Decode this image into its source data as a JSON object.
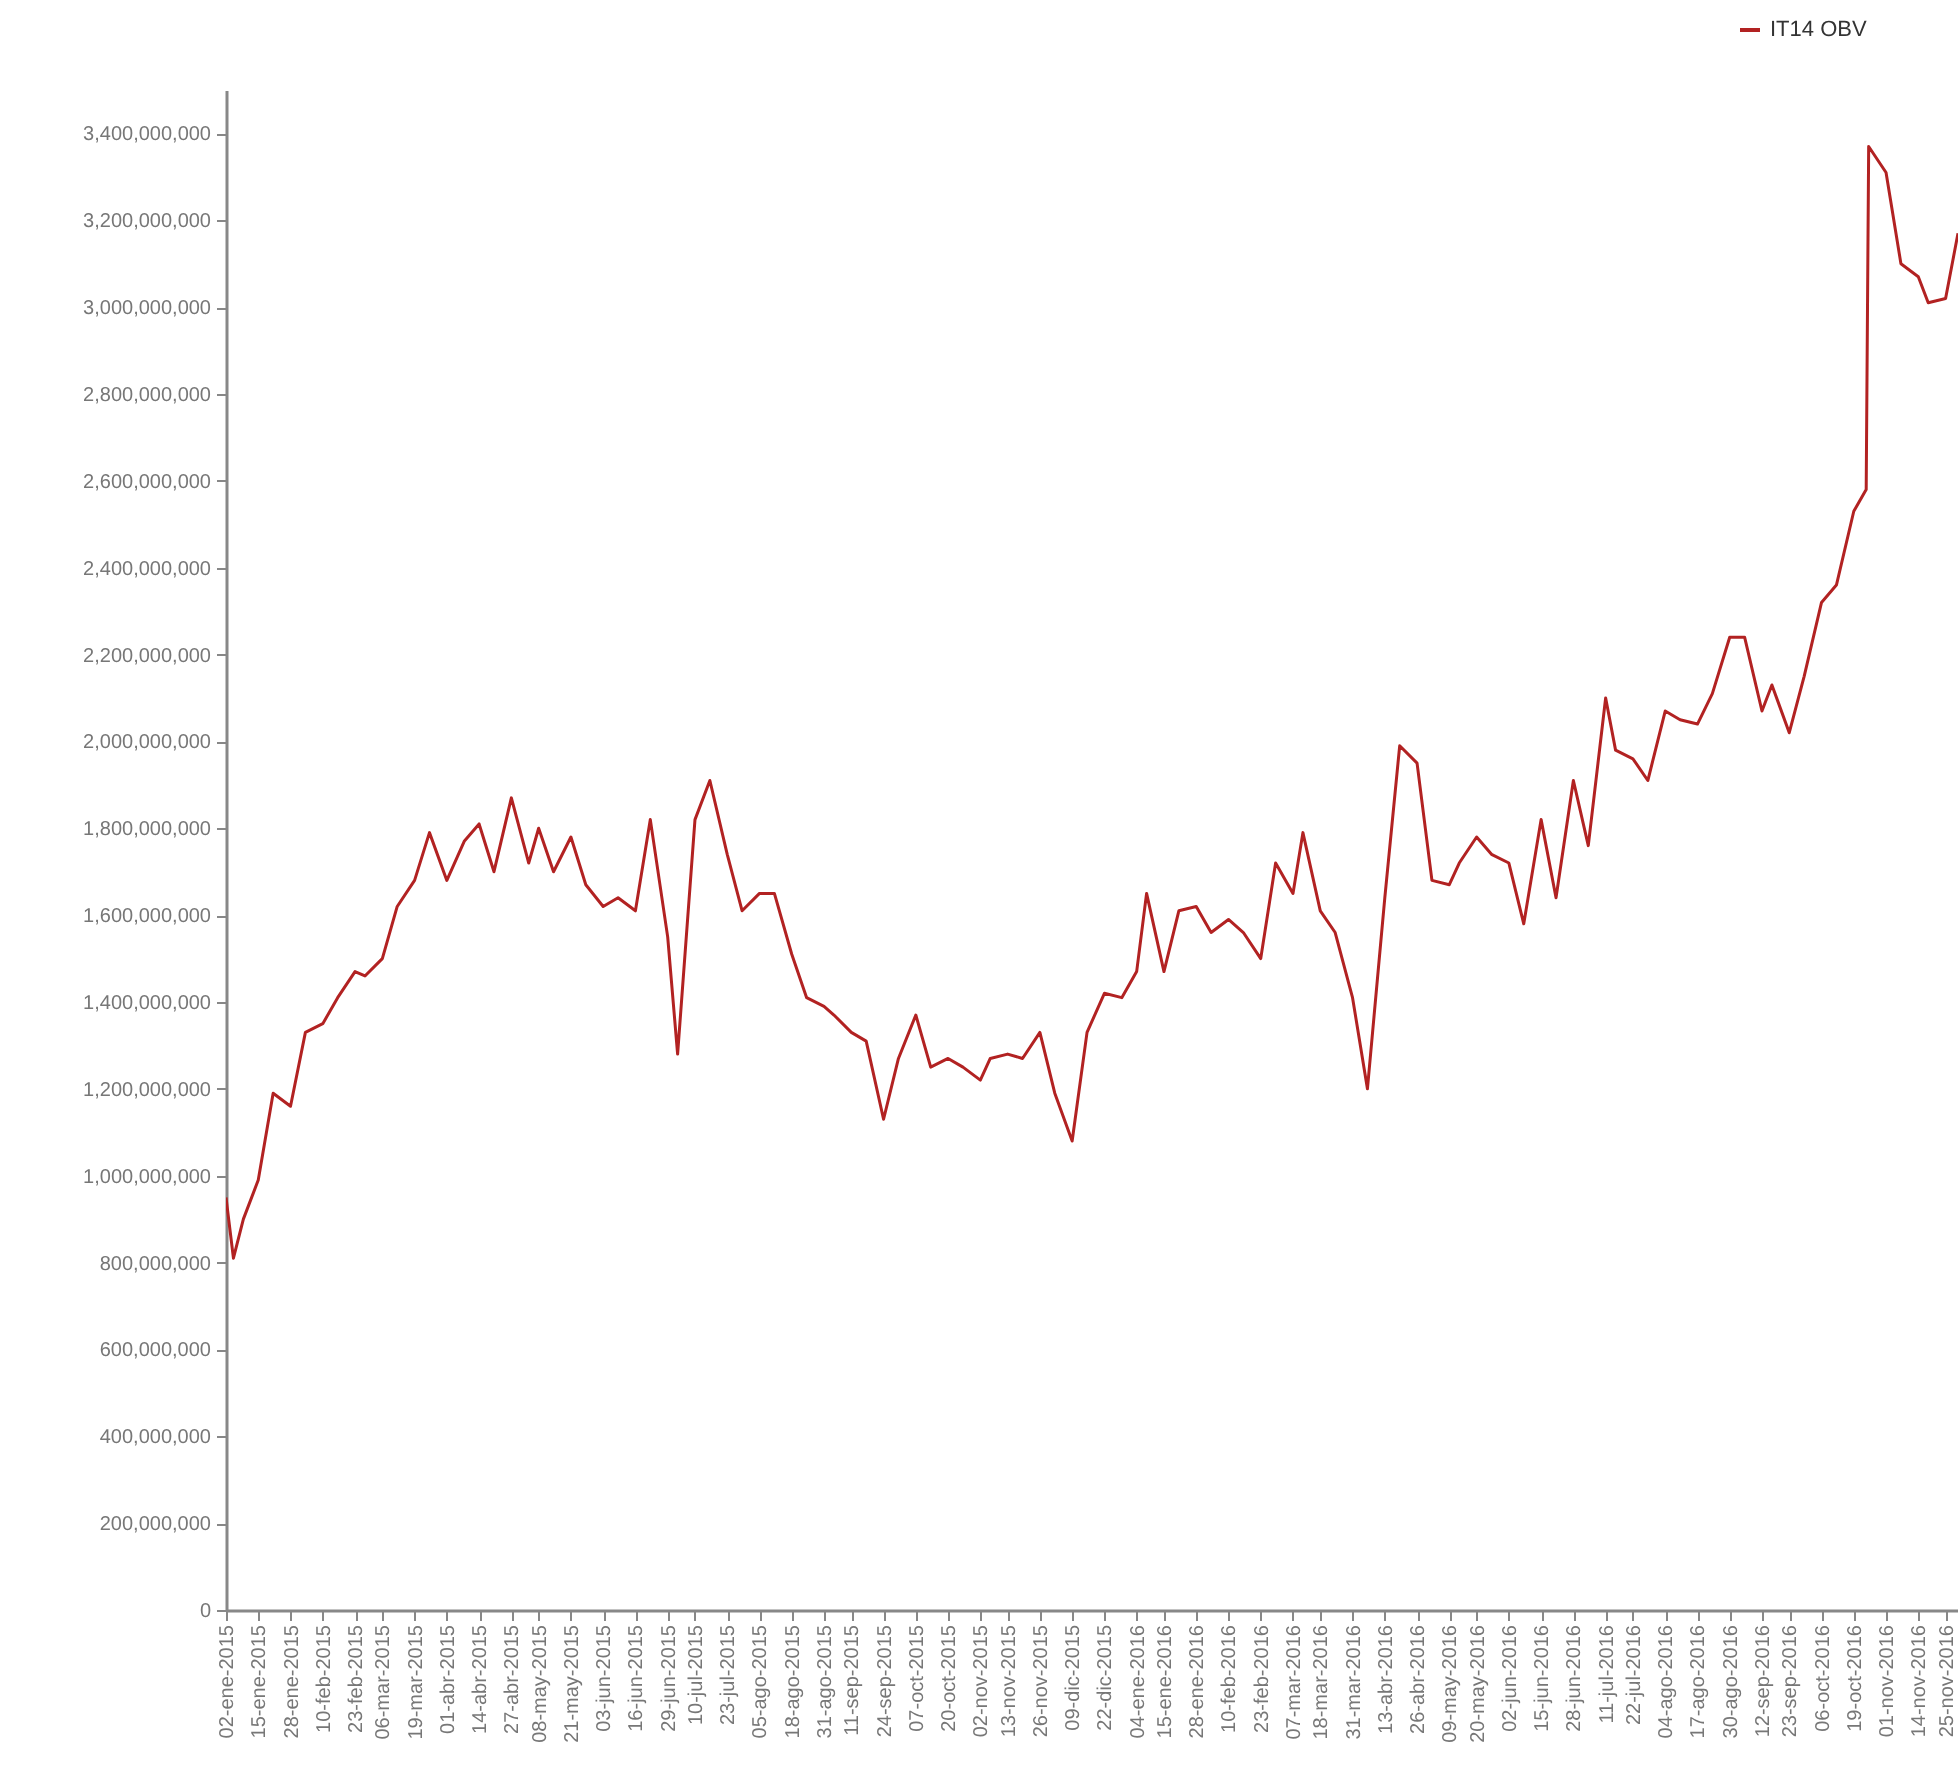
{
  "chart_data": {
    "type": "line",
    "legend": "top right",
    "marker": "none",
    "line_style": "solid",
    "xlim": [
      "2015-01-02",
      "2016-11-30"
    ],
    "ylim": [
      0,
      3500000000
    ],
    "yticks": [
      0,
      {
        "value": 200000000,
        "label": "200,000,000"
      },
      {
        "value": 400000000,
        "label": "400,000,000"
      },
      {
        "value": 600000000,
        "label": "600,000,000"
      },
      {
        "value": 800000000,
        "label": "800,000,000"
      },
      {
        "value": 1000000000,
        "label": "1,000,000,000"
      },
      {
        "value": 1200000000,
        "label": "1,200,000,000"
      },
      {
        "value": 1400000000,
        "label": "1,400,000,000"
      },
      {
        "value": 1600000000,
        "label": "1,600,000,000"
      },
      {
        "value": 1800000000,
        "label": "1,800,000,000"
      },
      {
        "value": 2000000000,
        "label": "2,000,000,000"
      },
      {
        "value": 2200000000,
        "label": "2,200,000,000"
      },
      {
        "value": 2400000000,
        "label": "2,400,000,000"
      },
      {
        "value": 2600000000,
        "label": "2,600,000,000"
      },
      {
        "value": 2800000000,
        "label": "2,800,000,000"
      },
      {
        "value": 3000000000,
        "label": "3,000,000,000"
      },
      {
        "value": 3200000000,
        "label": "3,200,000,000"
      },
      {
        "value": 3400000000,
        "label": "3,400,000,000"
      }
    ],
    "xticks": [
      {
        "value": "2015-01-02",
        "label": "02-ene-2015"
      },
      {
        "value": "2015-01-15",
        "label": "15-ene-2015"
      },
      {
        "value": "2015-01-28",
        "label": "28-ene-2015"
      },
      {
        "value": "2015-02-10",
        "label": "10-feb-2015"
      },
      {
        "value": "2015-02-23",
        "label": "23-feb-2015"
      },
      {
        "value": "2015-03-06",
        "label": "06-mar-2015"
      },
      {
        "value": "2015-03-19",
        "label": "19-mar-2015"
      },
      {
        "value": "2015-04-01",
        "label": "01-abr-2015"
      },
      {
        "value": "2015-04-14",
        "label": "14-abr-2015"
      },
      {
        "value": "2015-04-27",
        "label": "27-abr-2015"
      },
      {
        "value": "2015-05-08",
        "label": "08-may-2015"
      },
      {
        "value": "2015-05-21",
        "label": "21-may-2015"
      },
      {
        "value": "2015-06-03",
        "label": "03-jun-2015"
      },
      {
        "value": "2015-06-16",
        "label": "16-jun-2015"
      },
      {
        "value": "2015-06-29",
        "label": "29-jun-2015"
      },
      {
        "value": "2015-07-10",
        "label": "10-jul-2015"
      },
      {
        "value": "2015-07-23",
        "label": "23-jul-2015"
      },
      {
        "value": "2015-08-05",
        "label": "05-ago-2015"
      },
      {
        "value": "2015-08-18",
        "label": "18-ago-2015"
      },
      {
        "value": "2015-08-31",
        "label": "31-ago-2015"
      },
      {
        "value": "2015-09-11",
        "label": "11-sep-2015"
      },
      {
        "value": "2015-09-24",
        "label": "24-sep-2015"
      },
      {
        "value": "2015-10-07",
        "label": "07-oct-2015"
      },
      {
        "value": "2015-10-20",
        "label": "20-oct-2015"
      },
      {
        "value": "2015-11-02",
        "label": "02-nov-2015"
      },
      {
        "value": "2015-11-13",
        "label": "13-nov-2015"
      },
      {
        "value": "2015-11-26",
        "label": "26-nov-2015"
      },
      {
        "value": "2015-12-09",
        "label": "09-dic-2015"
      },
      {
        "value": "2015-12-22",
        "label": "22-dic-2015"
      },
      {
        "value": "2016-01-04",
        "label": "04-ene-2016"
      },
      {
        "value": "2016-01-15",
        "label": "15-ene-2016"
      },
      {
        "value": "2016-01-28",
        "label": "28-ene-2016"
      },
      {
        "value": "2016-02-10",
        "label": "10-feb-2016"
      },
      {
        "value": "2016-02-23",
        "label": "23-feb-2016"
      },
      {
        "value": "2016-03-07",
        "label": "07-mar-2016"
      },
      {
        "value": "2016-03-18",
        "label": "18-mar-2016"
      },
      {
        "value": "2016-03-31",
        "label": "31-mar-2016"
      },
      {
        "value": "2016-04-13",
        "label": "13-abr-2016"
      },
      {
        "value": "2016-04-26",
        "label": "26-abr-2016"
      },
      {
        "value": "2016-05-09",
        "label": "09-may-2016"
      },
      {
        "value": "2016-05-20",
        "label": "20-may-2016"
      },
      {
        "value": "2016-06-02",
        "label": "02-jun-2016"
      },
      {
        "value": "2016-06-15",
        "label": "15-jun-2016"
      },
      {
        "value": "2016-06-28",
        "label": "28-jun-2016"
      },
      {
        "value": "2016-07-11",
        "label": "11-jul-2016"
      },
      {
        "value": "2016-07-22",
        "label": "22-jul-2016"
      },
      {
        "value": "2016-08-04",
        "label": "04-ago-2016"
      },
      {
        "value": "2016-08-17",
        "label": "17-ago-2016"
      },
      {
        "value": "2016-08-30",
        "label": "30-ago-2016"
      },
      {
        "value": "2016-09-12",
        "label": "12-sep-2016"
      },
      {
        "value": "2016-09-23",
        "label": "23-sep-2016"
      },
      {
        "value": "2016-10-06",
        "label": "06-oct-2016"
      },
      {
        "value": "2016-10-19",
        "label": "19-oct-2016"
      },
      {
        "value": "2016-11-01",
        "label": "01-nov-2016"
      },
      {
        "value": "2016-11-14",
        "label": "14-nov-2016"
      },
      {
        "value": "2016-11-25",
        "label": "25-nov-2016"
      }
    ],
    "x": [
      "2015-01-02",
      "2015-01-05",
      "2015-01-09",
      "2015-01-15",
      "2015-01-21",
      "2015-01-28",
      "2015-02-03",
      "2015-02-10",
      "2015-02-16",
      "2015-02-23",
      "2015-02-27",
      "2015-03-06",
      "2015-03-12",
      "2015-03-19",
      "2015-03-25",
      "2015-04-01",
      "2015-04-08",
      "2015-04-14",
      "2015-04-20",
      "2015-04-27",
      "2015-05-04",
      "2015-05-08",
      "2015-05-14",
      "2015-05-21",
      "2015-05-27",
      "2015-06-03",
      "2015-06-09",
      "2015-06-16",
      "2015-06-22",
      "2015-06-29",
      "2015-07-03",
      "2015-07-10",
      "2015-07-16",
      "2015-07-23",
      "2015-07-29",
      "2015-08-05",
      "2015-08-11",
      "2015-08-18",
      "2015-08-24",
      "2015-08-31",
      "2015-09-04",
      "2015-09-11",
      "2015-09-17",
      "2015-09-24",
      "2015-09-30",
      "2015-10-07",
      "2015-10-13",
      "2015-10-20",
      "2015-10-26",
      "2015-11-02",
      "2015-11-06",
      "2015-11-13",
      "2015-11-19",
      "2015-11-26",
      "2015-12-02",
      "2015-12-09",
      "2015-12-15",
      "2015-12-22",
      "2015-12-29",
      "2016-01-04",
      "2016-01-08",
      "2016-01-15",
      "2016-01-21",
      "2016-01-28",
      "2016-02-03",
      "2016-02-10",
      "2016-02-16",
      "2016-02-23",
      "2016-02-29",
      "2016-03-07",
      "2016-03-11",
      "2016-03-18",
      "2016-03-24",
      "2016-03-31",
      "2016-04-06",
      "2016-04-13",
      "2016-04-19",
      "2016-04-26",
      "2016-05-02",
      "2016-05-09",
      "2016-05-13",
      "2016-05-20",
      "2016-05-26",
      "2016-06-02",
      "2016-06-08",
      "2016-06-15",
      "2016-06-21",
      "2016-06-28",
      "2016-07-04",
      "2016-07-11",
      "2016-07-15",
      "2016-07-22",
      "2016-07-28",
      "2016-08-04",
      "2016-08-10",
      "2016-08-17",
      "2016-08-23",
      "2016-08-30",
      "2016-09-05",
      "2016-09-12",
      "2016-09-16",
      "2016-09-23",
      "2016-09-29",
      "2016-10-06",
      "2016-10-12",
      "2016-10-19",
      "2016-10-24",
      "2016-10-25",
      "2016-11-01",
      "2016-11-07",
      "2016-11-14",
      "2016-11-18",
      "2016-11-25",
      "2016-11-30"
    ],
    "series": [
      {
        "name": "IT14 OBV",
        "color": "#b22222",
        "values": [
          950000000,
          810000000,
          900000000,
          990000000,
          1190000000,
          1160000000,
          1330000000,
          1350000000,
          1410000000,
          1470000000,
          1460000000,
          1500000000,
          1620000000,
          1680000000,
          1790000000,
          1680000000,
          1770000000,
          1810000000,
          1700000000,
          1870000000,
          1720000000,
          1800000000,
          1700000000,
          1780000000,
          1670000000,
          1620000000,
          1640000000,
          1610000000,
          1820000000,
          1550000000,
          1280000000,
          1820000000,
          1910000000,
          1740000000,
          1610000000,
          1650000000,
          1650000000,
          1510000000,
          1410000000,
          1390000000,
          1370000000,
          1330000000,
          1310000000,
          1130000000,
          1270000000,
          1370000000,
          1250000000,
          1270000000,
          1250000000,
          1220000000,
          1270000000,
          1280000000,
          1270000000,
          1330000000,
          1190000000,
          1080000000,
          1330000000,
          1420000000,
          1410000000,
          1470000000,
          1650000000,
          1470000000,
          1610000000,
          1620000000,
          1560000000,
          1590000000,
          1560000000,
          1500000000,
          1720000000,
          1650000000,
          1790000000,
          1610000000,
          1560000000,
          1410000000,
          1200000000,
          1640000000,
          1990000000,
          1950000000,
          1680000000,
          1670000000,
          1720000000,
          1780000000,
          1740000000,
          1720000000,
          1580000000,
          1820000000,
          1640000000,
          1910000000,
          1760000000,
          2100000000,
          1980000000,
          1960000000,
          1910000000,
          2070000000,
          2050000000,
          2040000000,
          2110000000,
          2240000000,
          2240000000,
          2070000000,
          2130000000,
          2020000000,
          2150000000,
          2320000000,
          2360000000,
          2530000000,
          2580000000,
          3370000000,
          3310000000,
          3100000000,
          3070000000,
          3010000000,
          3020000000,
          3170000000
        ]
      }
    ]
  }
}
